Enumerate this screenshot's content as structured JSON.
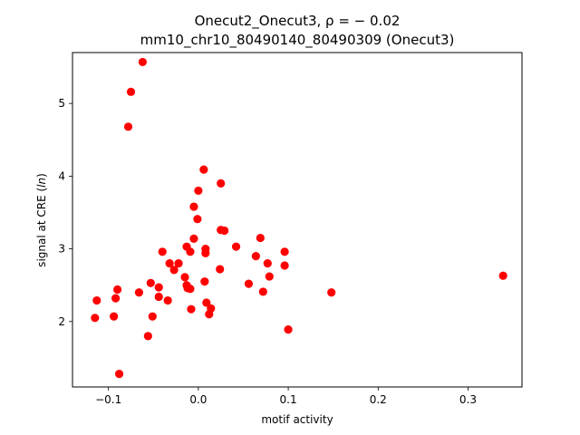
{
  "chart_data": {
    "type": "scatter",
    "title_line1": "Onecut2_Onecut3, ρ = − 0.02",
    "title_line2": "mm10_chr10_80490140_80490309 (Onecut3)",
    "xlabel": "motif activity",
    "ylabel": "signal at CRE (ln)",
    "xlim": [
      -0.14,
      0.36
    ],
    "ylim": [
      1.1,
      5.7
    ],
    "xticks": [
      -0.1,
      0.0,
      0.1,
      0.2,
      0.3
    ],
    "xtick_labels": [
      "−0.1",
      "0.0",
      "0.1",
      "0.2",
      "0.3"
    ],
    "yticks": [
      2,
      3,
      4,
      5
    ],
    "ytick_labels": [
      "2",
      "3",
      "4",
      "5"
    ],
    "grid": false,
    "marker_color": "#ff0000",
    "points": [
      {
        "x": -0.062,
        "y": 5.57
      },
      {
        "x": -0.075,
        "y": 5.16
      },
      {
        "x": -0.078,
        "y": 4.68
      },
      {
        "x": 0.006,
        "y": 4.09
      },
      {
        "x": 0.025,
        "y": 3.9
      },
      {
        "x": 0.0,
        "y": 3.8
      },
      {
        "x": -0.005,
        "y": 3.58
      },
      {
        "x": -0.001,
        "y": 3.41
      },
      {
        "x": 0.025,
        "y": 3.26
      },
      {
        "x": 0.029,
        "y": 3.25
      },
      {
        "x": 0.069,
        "y": 3.15
      },
      {
        "x": -0.005,
        "y": 3.14
      },
      {
        "x": -0.013,
        "y": 3.03
      },
      {
        "x": 0.042,
        "y": 3.03
      },
      {
        "x": 0.008,
        "y": 3.0
      },
      {
        "x": -0.04,
        "y": 2.96
      },
      {
        "x": -0.009,
        "y": 2.96
      },
      {
        "x": 0.096,
        "y": 2.96
      },
      {
        "x": 0.008,
        "y": 2.94
      },
      {
        "x": 0.064,
        "y": 2.9
      },
      {
        "x": -0.032,
        "y": 2.8
      },
      {
        "x": -0.022,
        "y": 2.8
      },
      {
        "x": 0.077,
        "y": 2.8
      },
      {
        "x": 0.096,
        "y": 2.77
      },
      {
        "x": 0.024,
        "y": 2.72
      },
      {
        "x": -0.027,
        "y": 2.71
      },
      {
        "x": 0.339,
        "y": 2.63
      },
      {
        "x": -0.015,
        "y": 2.61
      },
      {
        "x": 0.079,
        "y": 2.62
      },
      {
        "x": -0.053,
        "y": 2.53
      },
      {
        "x": 0.056,
        "y": 2.52
      },
      {
        "x": 0.007,
        "y": 2.55
      },
      {
        "x": -0.013,
        "y": 2.5
      },
      {
        "x": -0.044,
        "y": 2.47
      },
      {
        "x": -0.012,
        "y": 2.46
      },
      {
        "x": -0.009,
        "y": 2.45
      },
      {
        "x": -0.09,
        "y": 2.44
      },
      {
        "x": -0.066,
        "y": 2.4
      },
      {
        "x": 0.072,
        "y": 2.41
      },
      {
        "x": 0.148,
        "y": 2.4
      },
      {
        "x": -0.044,
        "y": 2.34
      },
      {
        "x": -0.092,
        "y": 2.32
      },
      {
        "x": -0.113,
        "y": 2.29
      },
      {
        "x": -0.034,
        "y": 2.29
      },
      {
        "x": 0.009,
        "y": 2.26
      },
      {
        "x": 0.014,
        "y": 2.18
      },
      {
        "x": -0.008,
        "y": 2.17
      },
      {
        "x": 0.012,
        "y": 2.1
      },
      {
        "x": -0.094,
        "y": 2.07
      },
      {
        "x": -0.051,
        "y": 2.07
      },
      {
        "x": -0.115,
        "y": 2.05
      },
      {
        "x": 0.1,
        "y": 1.89
      },
      {
        "x": -0.056,
        "y": 1.8
      },
      {
        "x": -0.088,
        "y": 1.28
      }
    ]
  }
}
